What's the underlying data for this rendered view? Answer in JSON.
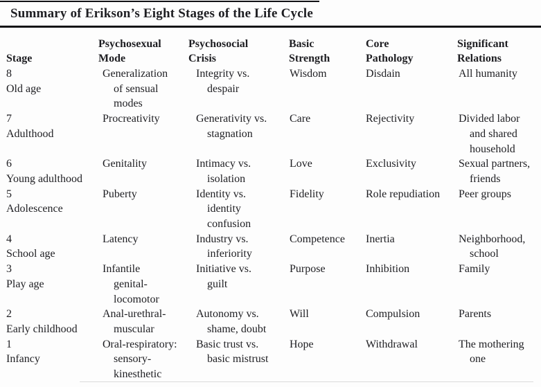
{
  "title": "Summary of Erikson’s Eight Stages of the Life Cycle",
  "table": {
    "columns": [
      {
        "label": "Stage"
      },
      {
        "label": "Psychosexual\nMode"
      },
      {
        "label": "Psychosocial\nCrisis"
      },
      {
        "label": "Basic\nStrength"
      },
      {
        "label": "Core\nPathology"
      },
      {
        "label": "Significant\nRelations"
      }
    ],
    "rows": [
      {
        "stage": "8\nOld age",
        "psychosexual_mode": "Generalization\nof sensual\nmodes",
        "psychosocial_crisis": "Integrity vs.\ndespair",
        "basic_strength": "Wisdom",
        "core_pathology": "Disdain",
        "significant_relations": "All humanity"
      },
      {
        "stage": "7\nAdulthood",
        "psychosexual_mode": "Procreativity",
        "psychosocial_crisis": "Generativity vs.\nstagnation",
        "basic_strength": "Care",
        "core_pathology": "Rejectivity",
        "significant_relations": "Divided labor\nand shared\nhousehold"
      },
      {
        "stage": "6\nYoung adulthood",
        "psychosexual_mode": "Genitality",
        "psychosocial_crisis": "Intimacy vs.\nisolation",
        "basic_strength": "Love",
        "core_pathology": "Exclusivity",
        "significant_relations": "Sexual partners,\nfriends"
      },
      {
        "stage": "5\nAdolescence",
        "psychosexual_mode": "Puberty",
        "psychosocial_crisis": "Identity vs.\nidentity\nconfusion",
        "basic_strength": "Fidelity",
        "core_pathology": "Role repudiation",
        "significant_relations": "Peer groups"
      },
      {
        "stage": "4\nSchool age",
        "psychosexual_mode": "Latency",
        "psychosocial_crisis": "Industry vs.\ninferiority",
        "basic_strength": "Competence",
        "core_pathology": "Inertia",
        "significant_relations": "Neighborhood,\nschool"
      },
      {
        "stage": "3\nPlay age",
        "psychosexual_mode": "Infantile\ngenital-\nlocomotor",
        "psychosocial_crisis": "Initiative vs.\nguilt",
        "basic_strength": "Purpose",
        "core_pathology": "Inhibition",
        "significant_relations": "Family"
      },
      {
        "stage": "2\nEarly childhood",
        "psychosexual_mode": "Anal-urethral-\nmuscular",
        "psychosocial_crisis": "Autonomy vs.\nshame, doubt",
        "basic_strength": "Will",
        "core_pathology": "Compulsion",
        "significant_relations": "Parents"
      },
      {
        "stage": "1\nInfancy",
        "psychosexual_mode": "Oral-respiratory:\nsensory-\nkinesthetic",
        "psychosocial_crisis": "Basic trust vs.\nbasic mistrust",
        "basic_strength": "Hope",
        "core_pathology": "Withdrawal",
        "significant_relations": "The mothering\none"
      }
    ]
  },
  "colors": {
    "text": "#1e1e22",
    "rule": "#101014",
    "background": "#fdfdfd"
  }
}
